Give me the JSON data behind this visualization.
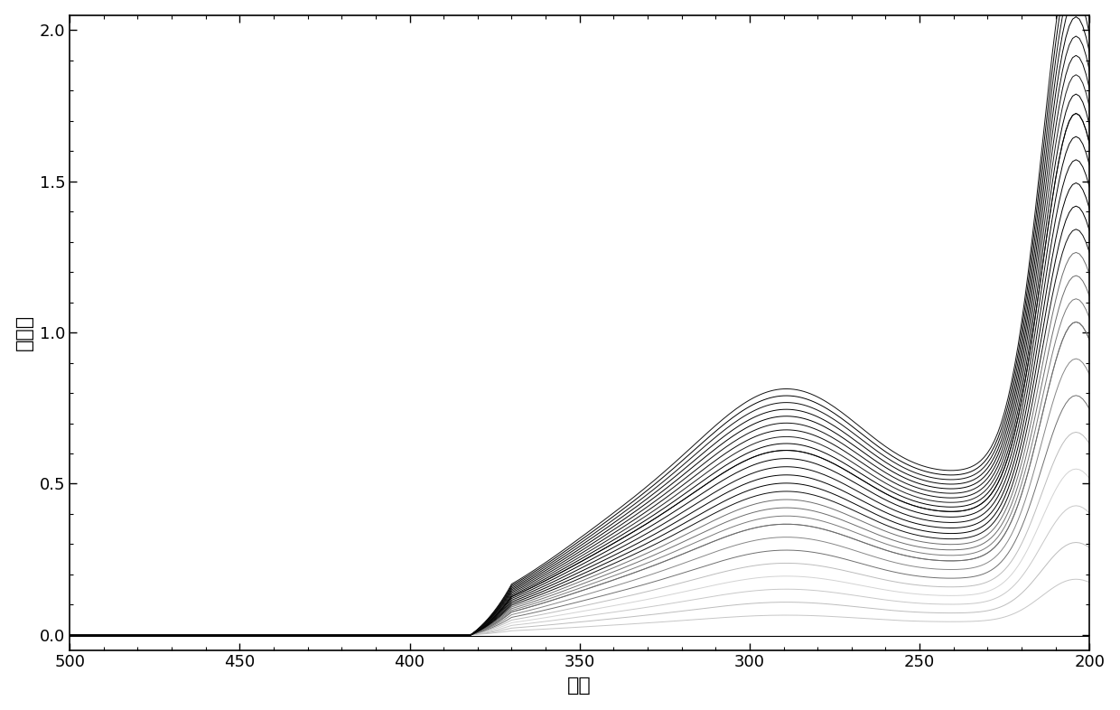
{
  "xlabel": "变量",
  "ylabel": "吸光度",
  "xlim": [
    500,
    200
  ],
  "ylim": [
    -0.05,
    2.05
  ],
  "xticks": [
    500,
    450,
    400,
    350,
    300,
    250,
    200
  ],
  "yticks": [
    0,
    0.5,
    1.0,
    1.5,
    2.0
  ],
  "n_lines": 28,
  "background_color": "#ffffff",
  "linewidth": 0.7,
  "x_start": 500,
  "x_end": 200
}
